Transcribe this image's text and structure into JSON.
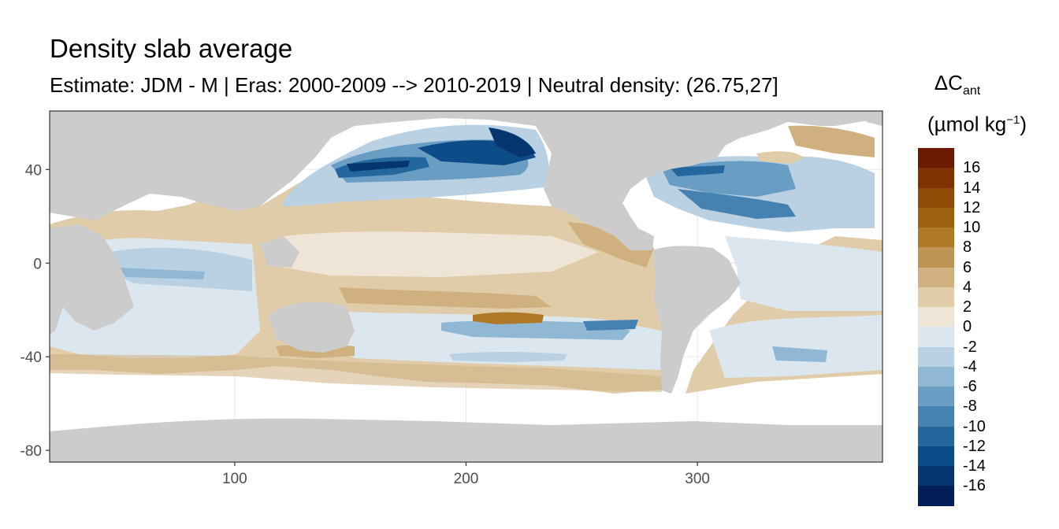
{
  "title": "Density slab average",
  "subtitle": "Estimate: JDM - M | Eras: 2000-2009 --> 2010-2019 | Neutral density: (26.75,27]",
  "map": {
    "x_range": [
      20,
      380
    ],
    "y_range": [
      -85,
      65
    ],
    "x_ticks": [
      100,
      200,
      300
    ],
    "y_ticks": [
      40,
      0,
      -40,
      -80
    ],
    "land_color": "#cccccc",
    "ocean_background": "#ffffff",
    "grid": true
  },
  "legend": {
    "title_main": "ΔC",
    "title_sub": "ant",
    "unit_prefix": "(µmol kg",
    "unit_exp": "−1",
    "unit_suffix": ")",
    "labels": [
      "16",
      "14",
      "12",
      "10",
      "8",
      "6",
      "4",
      "2",
      "0",
      "-2",
      "-4",
      "-6",
      "-8",
      "-10",
      "-12",
      "-14",
      "-16"
    ],
    "colors": [
      "#6b1a02",
      "#7f3200",
      "#8f4b06",
      "#9e6110",
      "#ae7a28",
      "#bf9555",
      "#d0b07f",
      "#e1ccaa",
      "#eee5d6",
      "#dbe6ee",
      "#b9d1e3",
      "#90b8d4",
      "#6a9dc4",
      "#4582b2",
      "#23679e",
      "#0c4c88",
      "#05366f",
      "#021f5b"
    ]
  }
}
